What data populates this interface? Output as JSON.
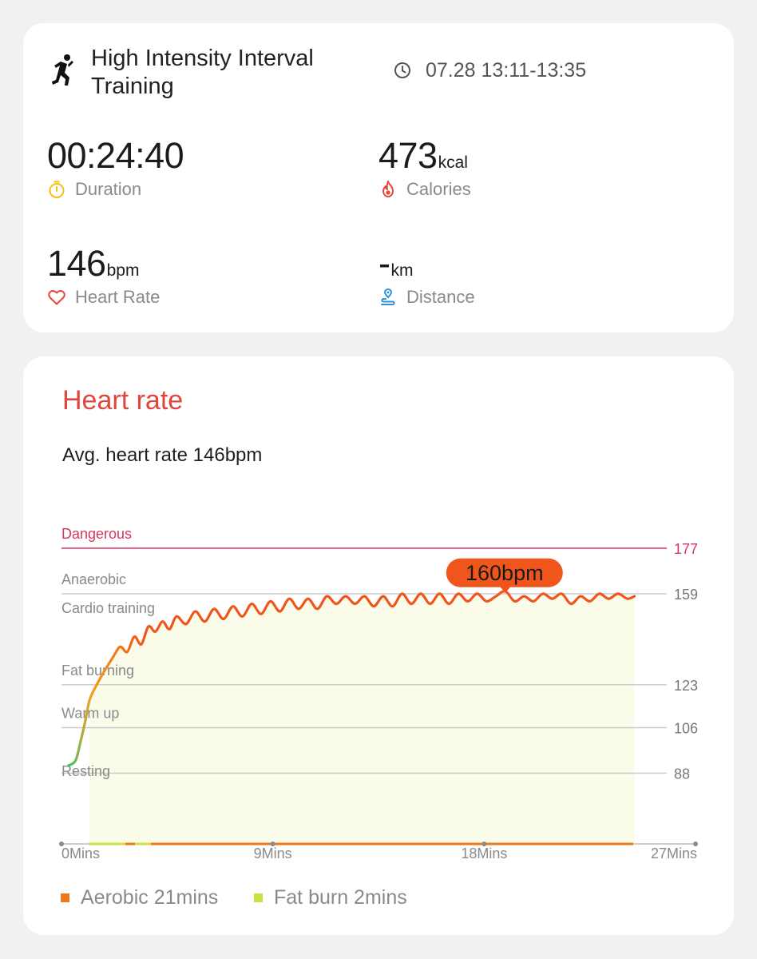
{
  "workout": {
    "title": "High Intensity Interval Training",
    "time_range": "07.28 13:11-13:35",
    "icon": "running-figure-icon"
  },
  "metrics": {
    "duration": {
      "value": "00:24:40",
      "unit": "",
      "label": "Duration",
      "icon": "stopwatch-icon",
      "icon_color": "#f2c21b"
    },
    "calories": {
      "value": "473",
      "unit": "kcal",
      "label": "Calories",
      "icon": "flame-icon",
      "icon_color": "#e8453c"
    },
    "heart_rate": {
      "value": "146",
      "unit": "bpm",
      "label": "Heart Rate",
      "icon": "heart-icon",
      "icon_color": "#e8453c"
    },
    "distance": {
      "value": "-",
      "unit": "km",
      "label": "Distance",
      "icon": "route-pin-icon",
      "icon_color": "#2f8fd8"
    }
  },
  "heart_rate_card": {
    "title": "Heart rate",
    "avg_text": "Avg. heart rate 146bpm"
  },
  "colors": {
    "accent_red": "#e0463c",
    "dangerous_line": "#d6375f",
    "curve_orange": "#f0561c",
    "curve_amber": "#f0a020",
    "curve_green": "#3cc46a",
    "fill": "#fafbe9",
    "aerobic": "#f07818",
    "fat_burn": "#cbe043"
  },
  "chart_data": {
    "type": "line",
    "xlabel": "",
    "ylabel": "",
    "x_ticks": [
      "0Mins",
      "9Mins",
      "18Mins",
      "27Mins"
    ],
    "xlim": [
      0,
      27
    ],
    "ylim": [
      60,
      177
    ],
    "zones": [
      {
        "name": "Dangerous",
        "bound": 177
      },
      {
        "name": "Anaerobic",
        "bound": 159
      },
      {
        "name": "Cardio training",
        "bound": null
      },
      {
        "name": "Fat burning",
        "bound": 123
      },
      {
        "name": "Warm up",
        "bound": 106
      },
      {
        "name": "Resting",
        "bound": 88
      }
    ],
    "y_ticks": [
      177,
      159,
      123,
      106,
      88
    ],
    "peak_label": "160bpm",
    "peak": {
      "x": 18.9,
      "y": 160
    },
    "series": [
      {
        "values": [
          [
            0.3,
            91
          ],
          [
            0.6,
            93
          ],
          [
            0.8,
            100
          ],
          [
            1.0,
            108
          ],
          [
            1.2,
            117
          ],
          [
            1.5,
            123
          ],
          [
            1.8,
            128
          ],
          [
            2.2,
            134
          ],
          [
            2.5,
            138
          ],
          [
            2.8,
            136
          ],
          [
            3.1,
            142
          ],
          [
            3.4,
            139
          ],
          [
            3.7,
            146
          ],
          [
            4.0,
            144
          ],
          [
            4.3,
            148
          ],
          [
            4.6,
            145
          ],
          [
            4.9,
            150
          ],
          [
            5.3,
            147
          ],
          [
            5.7,
            152
          ],
          [
            6.1,
            148
          ],
          [
            6.5,
            153
          ],
          [
            6.9,
            149
          ],
          [
            7.3,
            154
          ],
          [
            7.7,
            150
          ],
          [
            8.1,
            155
          ],
          [
            8.5,
            151
          ],
          [
            8.9,
            156
          ],
          [
            9.3,
            152
          ],
          [
            9.7,
            157
          ],
          [
            10.1,
            153
          ],
          [
            10.5,
            157
          ],
          [
            10.9,
            153
          ],
          [
            11.3,
            158
          ],
          [
            11.7,
            155
          ],
          [
            12.1,
            158
          ],
          [
            12.5,
            155
          ],
          [
            12.9,
            158
          ],
          [
            13.3,
            154
          ],
          [
            13.7,
            158
          ],
          [
            14.1,
            154
          ],
          [
            14.5,
            159
          ],
          [
            14.9,
            155
          ],
          [
            15.3,
            159
          ],
          [
            15.7,
            155
          ],
          [
            16.1,
            159
          ],
          [
            16.5,
            155
          ],
          [
            16.9,
            159
          ],
          [
            17.3,
            156
          ],
          [
            17.7,
            159
          ],
          [
            18.1,
            156
          ],
          [
            18.5,
            158
          ],
          [
            18.9,
            160
          ],
          [
            19.3,
            156
          ],
          [
            19.7,
            158
          ],
          [
            20.1,
            156
          ],
          [
            20.5,
            159
          ],
          [
            20.9,
            157
          ],
          [
            21.3,
            159
          ],
          [
            21.7,
            155
          ],
          [
            22.1,
            158
          ],
          [
            22.5,
            156
          ],
          [
            22.9,
            159
          ],
          [
            23.3,
            157
          ],
          [
            23.7,
            159
          ],
          [
            24.1,
            157
          ],
          [
            24.4,
            158
          ]
        ]
      }
    ],
    "legend": [
      {
        "label": "Aerobic 21mins",
        "color": "#f07818"
      },
      {
        "label": "Fat burn 2mins",
        "color": "#cbe043"
      }
    ],
    "legend_position": "bottom-left",
    "grid": true
  }
}
